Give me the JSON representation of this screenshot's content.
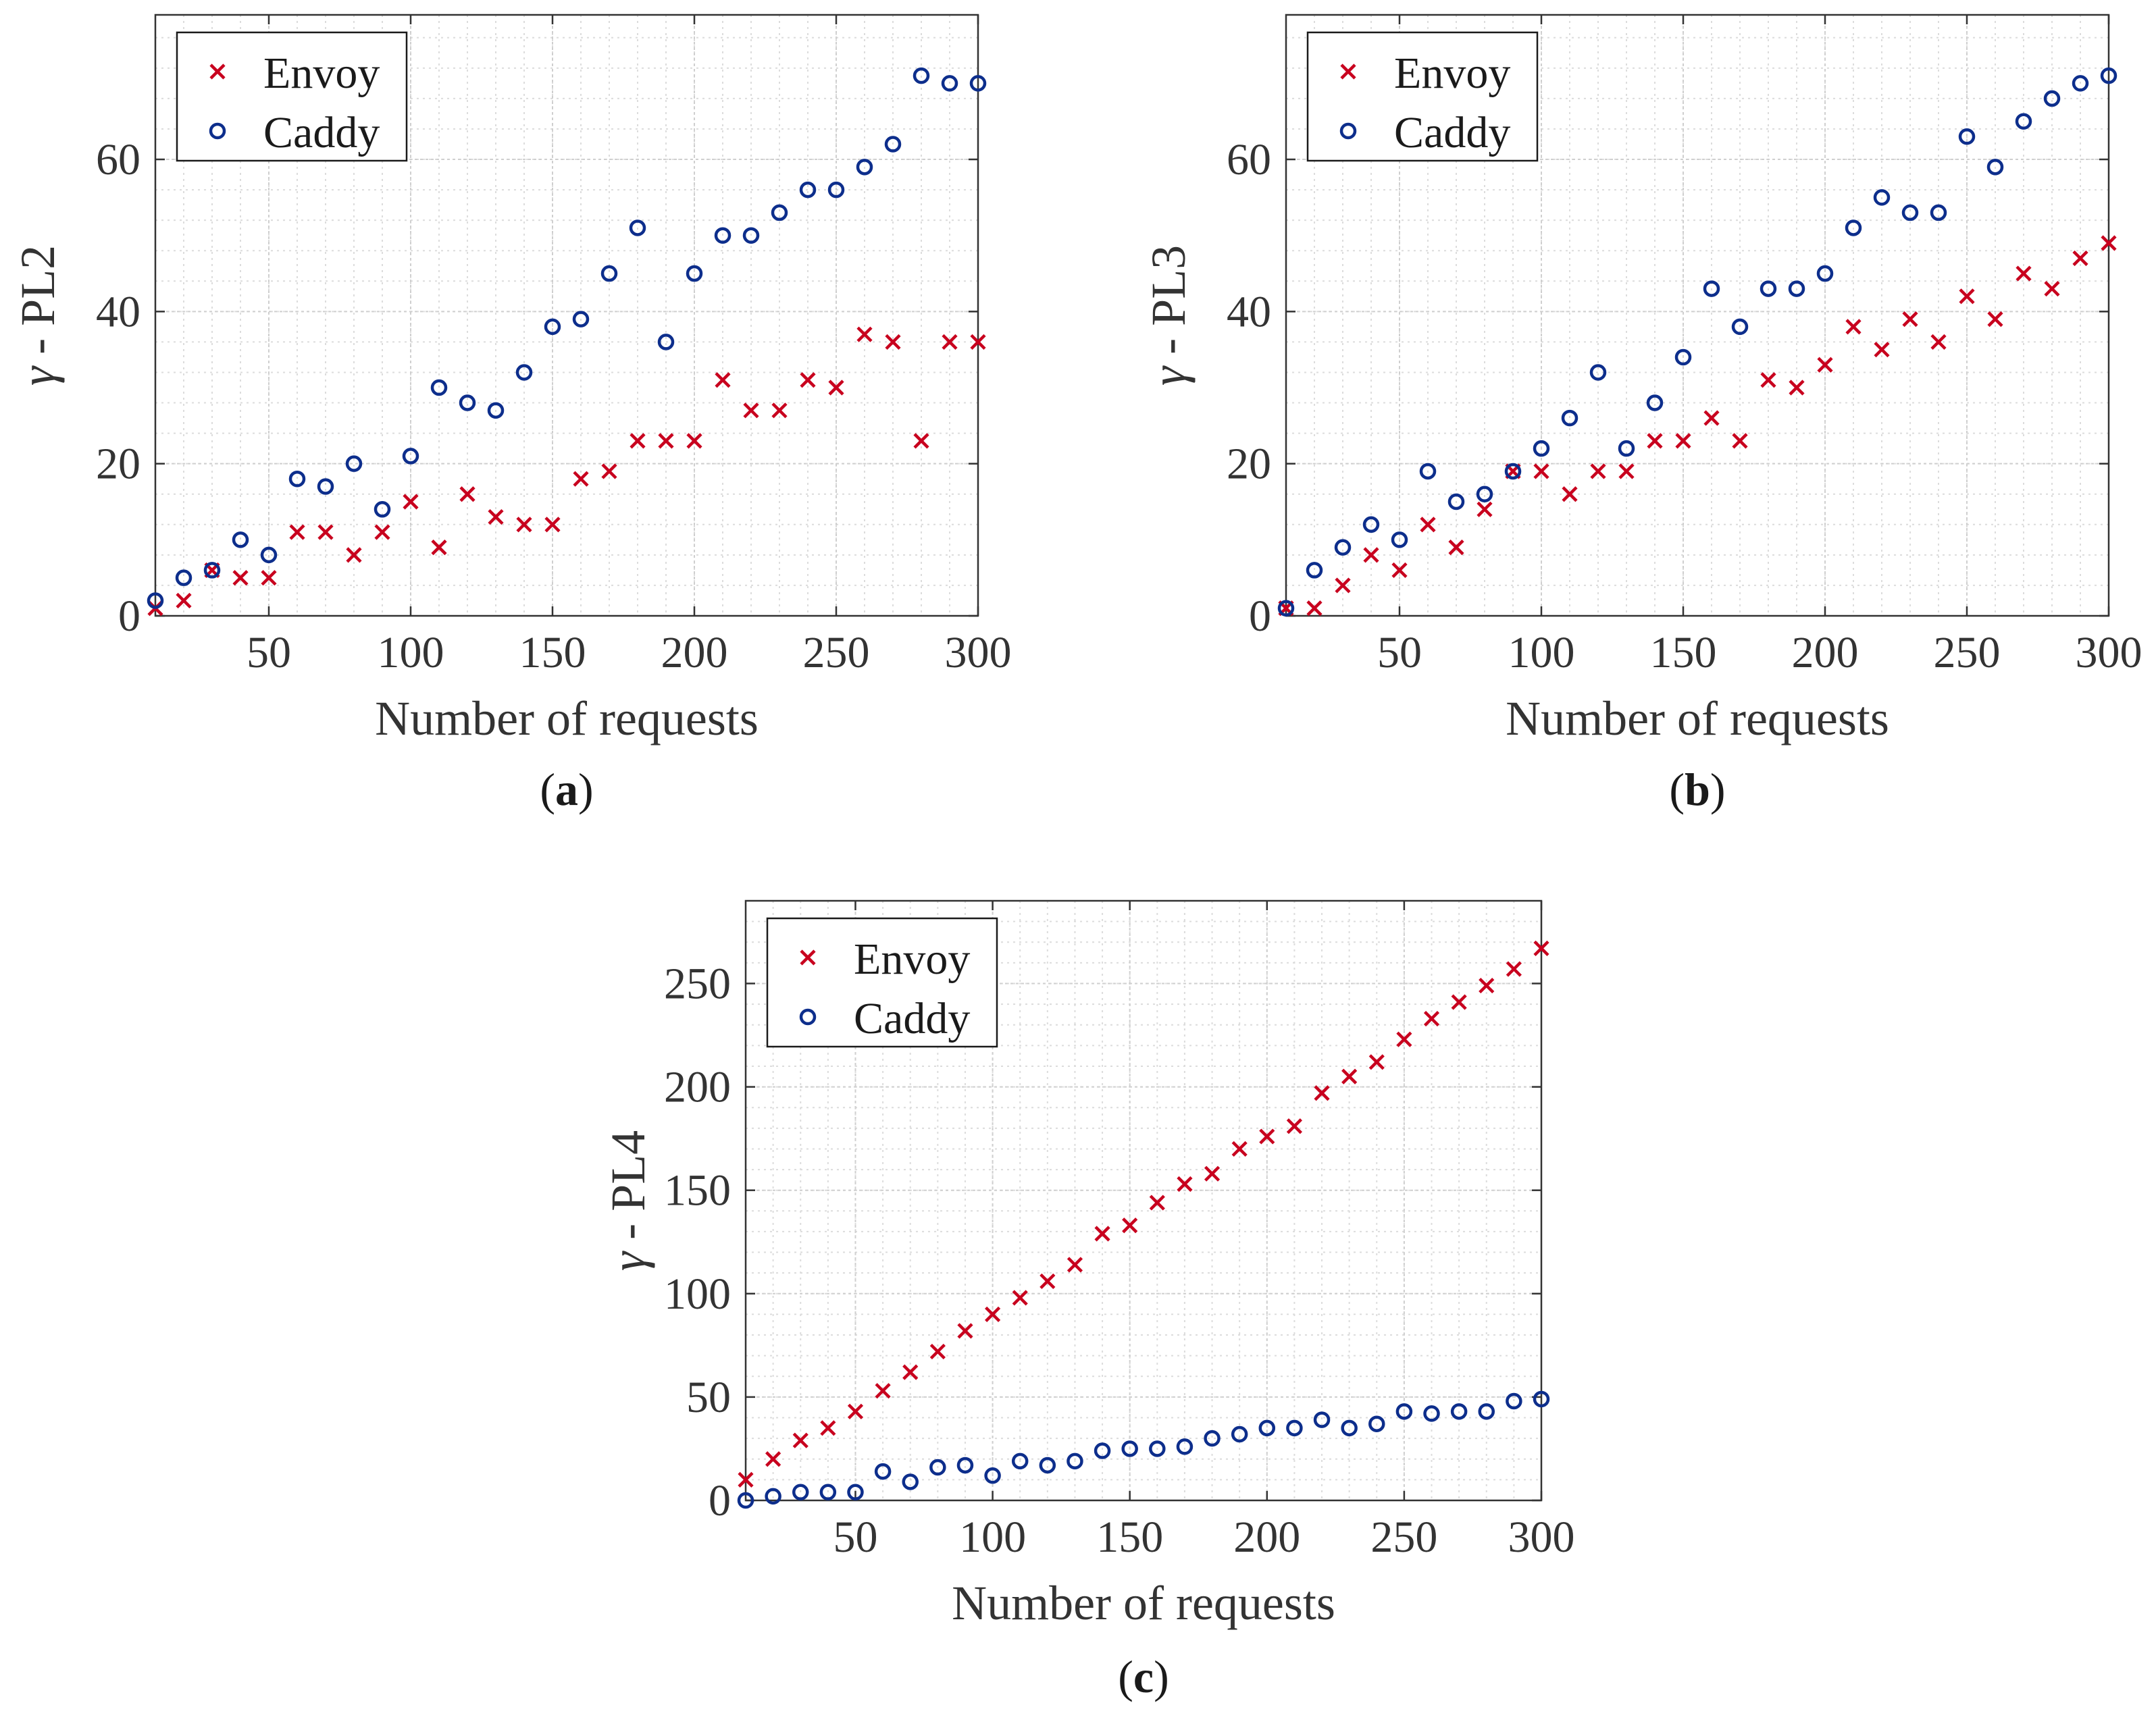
{
  "colors": {
    "envoy": "#c8001e",
    "caddy": "#0d2e8c",
    "grid": "#dcdcdc",
    "axis": "#333333"
  },
  "chart_data": [
    {
      "id": "a",
      "type": "scatter",
      "panel_label": "a",
      "xlabel": "Number of requests",
      "ylabel": "PL2",
      "ylabel_symbol": "γ",
      "ylabel_sep": " - ",
      "xlim": [
        10,
        300
      ],
      "ylim": [
        0,
        79
      ],
      "xticks": [
        50,
        100,
        150,
        200,
        250,
        300
      ],
      "yticks": [
        0,
        20,
        40,
        60
      ],
      "xtick_labels": [
        "50",
        "100",
        "150",
        "200",
        "250",
        "300"
      ],
      "ytick_labels": [
        "0",
        "20",
        "40",
        "60"
      ],
      "minor_x": 10,
      "minor_y": 4,
      "legend": [
        "Envoy",
        "Caddy"
      ],
      "x": [
        10,
        20,
        30,
        40,
        50,
        60,
        70,
        80,
        90,
        100,
        110,
        120,
        130,
        140,
        150,
        160,
        170,
        180,
        190,
        200,
        210,
        220,
        230,
        240,
        250,
        260,
        270,
        280,
        290,
        300
      ],
      "series": [
        {
          "name": "Envoy",
          "marker": "x",
          "values": [
            1,
            2,
            6,
            5,
            5,
            11,
            11,
            8,
            11,
            15,
            9,
            16,
            13,
            12,
            12,
            18,
            19,
            23,
            23,
            23,
            31,
            27,
            27,
            31,
            30,
            37,
            36,
            23,
            36,
            36
          ]
        },
        {
          "name": "Caddy",
          "marker": "o",
          "values": [
            2,
            5,
            6,
            10,
            8,
            18,
            17,
            20,
            14,
            21,
            30,
            28,
            27,
            32,
            38,
            39,
            45,
            51,
            36,
            45,
            50,
            50,
            53,
            56,
            56,
            59,
            62,
            71,
            70,
            70
          ]
        }
      ]
    },
    {
      "id": "b",
      "type": "scatter",
      "panel_label": "b",
      "xlabel": "Number of requests",
      "ylabel": "PL3",
      "ylabel_symbol": "γ",
      "ylabel_sep": " - ",
      "xlim": [
        10,
        300
      ],
      "ylim": [
        0,
        79
      ],
      "xticks": [
        50,
        100,
        150,
        200,
        250,
        300
      ],
      "yticks": [
        0,
        20,
        40,
        60
      ],
      "xtick_labels": [
        "50",
        "100",
        "150",
        "200",
        "250",
        "300"
      ],
      "ytick_labels": [
        "0",
        "20",
        "40",
        "60"
      ],
      "minor_x": 10,
      "minor_y": 4,
      "legend": [
        "Envoy",
        "Caddy"
      ],
      "x": [
        10,
        20,
        30,
        40,
        50,
        60,
        70,
        80,
        90,
        100,
        110,
        120,
        130,
        140,
        150,
        160,
        170,
        180,
        190,
        200,
        210,
        220,
        230,
        240,
        250,
        260,
        270,
        280,
        290,
        300
      ],
      "series": [
        {
          "name": "Envoy",
          "marker": "x",
          "values": [
            1,
            1,
            4,
            8,
            6,
            12,
            9,
            14,
            19,
            19,
            16,
            19,
            19,
            23,
            23,
            26,
            23,
            31,
            30,
            33,
            38,
            35,
            39,
            36,
            42,
            39,
            45,
            43,
            47,
            49
          ]
        },
        {
          "name": "Caddy",
          "marker": "o",
          "values": [
            1,
            6,
            9,
            12,
            10,
            19,
            15,
            16,
            19,
            22,
            26,
            32,
            22,
            28,
            34,
            43,
            38,
            43,
            43,
            45,
            51,
            55,
            53,
            53,
            63,
            59,
            65,
            68,
            70,
            71
          ]
        }
      ]
    },
    {
      "id": "c",
      "type": "scatter",
      "panel_label": "c",
      "xlabel": "Number of requests",
      "ylabel": "PL4",
      "ylabel_symbol": "γ",
      "ylabel_sep": " - ",
      "xlim": [
        10,
        300
      ],
      "ylim": [
        0,
        290
      ],
      "xticks": [
        50,
        100,
        150,
        200,
        250,
        300
      ],
      "yticks": [
        0,
        50,
        100,
        150,
        200,
        250
      ],
      "xtick_labels": [
        "50",
        "100",
        "150",
        "200",
        "250",
        "300"
      ],
      "ytick_labels": [
        "0",
        "50",
        "100",
        "150",
        "200",
        "250"
      ],
      "minor_x": 10,
      "minor_y": 10,
      "legend": [
        "Envoy",
        "Caddy"
      ],
      "x": [
        10,
        20,
        30,
        40,
        50,
        60,
        70,
        80,
        90,
        100,
        110,
        120,
        130,
        140,
        150,
        160,
        170,
        180,
        190,
        200,
        210,
        220,
        230,
        240,
        250,
        260,
        270,
        280,
        290,
        300
      ],
      "series": [
        {
          "name": "Envoy",
          "marker": "x",
          "values": [
            10,
            20,
            29,
            35,
            43,
            53,
            62,
            72,
            82,
            90,
            98,
            106,
            114,
            129,
            133,
            144,
            153,
            158,
            170,
            176,
            181,
            197,
            205,
            212,
            223,
            233,
            241,
            249,
            257,
            267
          ]
        },
        {
          "name": "Caddy",
          "marker": "o",
          "values": [
            0,
            2,
            4,
            4,
            4,
            14,
            9,
            16,
            17,
            12,
            19,
            17,
            19,
            24,
            25,
            25,
            26,
            30,
            32,
            35,
            35,
            39,
            35,
            37,
            43,
            42,
            43,
            43,
            48,
            49
          ]
        }
      ]
    }
  ]
}
